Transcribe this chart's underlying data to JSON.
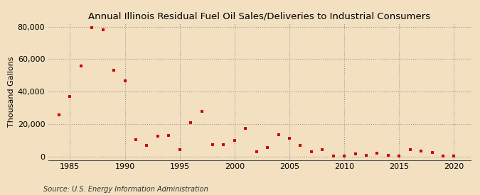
{
  "title": "Annual Illinois Residual Fuel Oil Sales/Deliveries to Industrial Consumers",
  "ylabel": "Thousand Gallons",
  "source": "Source: U.S. Energy Information Administration",
  "background_color": "#f2e0c0",
  "plot_bg_color": "#f2e0c0",
  "marker_color": "#cc0000",
  "marker": "s",
  "marker_size": 3,
  "xlim": [
    1983,
    2021.5
  ],
  "ylim": [
    -2000,
    82000
  ],
  "yticks": [
    0,
    20000,
    40000,
    60000,
    80000
  ],
  "xticks": [
    1985,
    1990,
    1995,
    2000,
    2005,
    2010,
    2015,
    2020
  ],
  "years": [
    1984,
    1985,
    1986,
    1987,
    1988,
    1989,
    1990,
    1991,
    1992,
    1993,
    1994,
    1995,
    1996,
    1997,
    1998,
    1999,
    2000,
    2001,
    2002,
    2003,
    2004,
    2005,
    2006,
    2007,
    2008,
    2009,
    2010,
    2011,
    2012,
    2013,
    2014,
    2015,
    2016,
    2017,
    2018,
    2019,
    2020
  ],
  "values": [
    25500,
    37000,
    56000,
    79500,
    78000,
    53000,
    46500,
    10500,
    7000,
    12500,
    13000,
    4500,
    21000,
    28000,
    7500,
    7500,
    10000,
    17500,
    3000,
    5500,
    13500,
    11500,
    7000,
    3000,
    4500,
    500,
    500,
    1500,
    1000,
    2000,
    1000,
    500,
    4500,
    3500,
    2500,
    500,
    500
  ],
  "title_fontsize": 9.5,
  "ylabel_fontsize": 8,
  "tick_fontsize": 8,
  "source_fontsize": 7
}
